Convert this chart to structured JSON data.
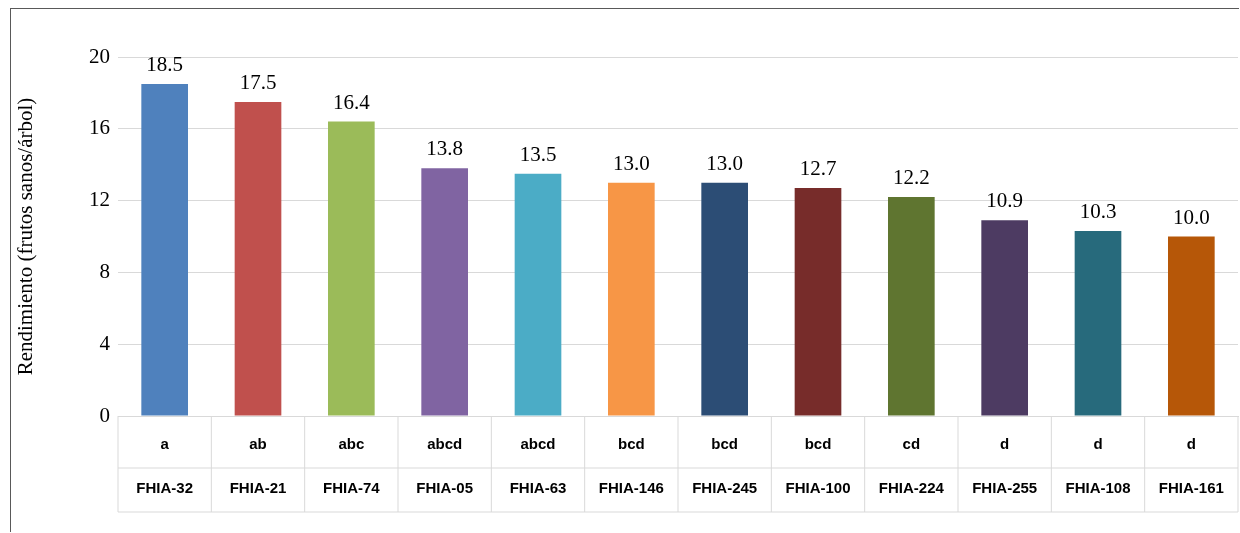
{
  "chart_data": {
    "type": "bar",
    "ylabel": "Rendimiento (frutos sanos/árbol)",
    "categories": [
      "FHIA-32",
      "FHIA-21",
      "FHIA-74",
      "FHIA-05",
      "FHIA-63",
      "FHIA-146",
      "FHIA-245",
      "FHIA-100",
      "FHIA-224",
      "FHIA-255",
      "FHIA-108",
      "FHIA-161"
    ],
    "values": [
      18.5,
      17.5,
      16.4,
      13.8,
      13.5,
      13.0,
      13.0,
      12.7,
      12.2,
      10.9,
      10.3,
      10.0
    ],
    "value_labels": [
      "18.5",
      "17.5",
      "16.4",
      "13.8",
      "13.5",
      "13.0",
      "13.0",
      "12.7",
      "12.2",
      "10.9",
      "10.3",
      "10.0"
    ],
    "colors": [
      "#4f81bd",
      "#c0504d",
      "#9bbb59",
      "#8064a2",
      "#4bacc6",
      "#f79646",
      "#2c4d75",
      "#772c2a",
      "#5f7530",
      "#4d3b62",
      "#276a7c",
      "#b65708"
    ],
    "ylim": [
      0,
      20
    ],
    "yticks": [
      0,
      4,
      8,
      12,
      16,
      20
    ],
    "grid": "y",
    "annotations": [
      "a",
      "ab",
      "abc",
      "abcd",
      "abcd",
      "bcd",
      "bcd",
      "bcd",
      "cd",
      "d",
      "d",
      "d"
    ]
  }
}
